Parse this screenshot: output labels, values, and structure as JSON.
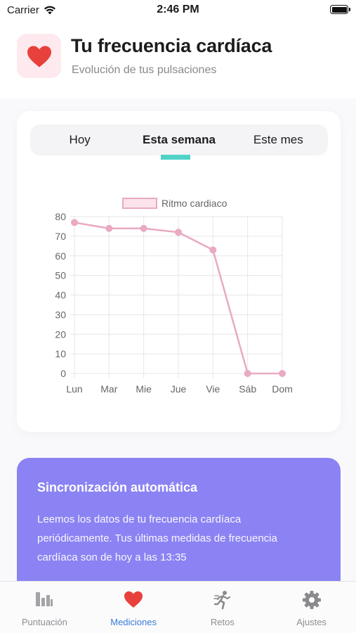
{
  "status_bar": {
    "carrier": "Carrier",
    "time": "2:46 PM"
  },
  "header": {
    "title": "Tu frecuencia cardíaca",
    "subtitle": "Evolución de tus pulsaciones",
    "icon": "heart-icon"
  },
  "segments": {
    "items": [
      "Hoy",
      "Esta semana",
      "Este mes"
    ],
    "selected": "Esta semana"
  },
  "chart_data": {
    "type": "line",
    "categories": [
      "Lun",
      "Mar",
      "Mie",
      "Jue",
      "Vie",
      "Sáb",
      "Dom"
    ],
    "series": [
      {
        "name": "Ritmo cardiaco",
        "values": [
          77,
          74,
          74,
          72,
          63,
          0,
          0
        ],
        "color": "#e9a9c3",
        "fill": "#fbe3ec"
      }
    ],
    "ylim": [
      0,
      80
    ],
    "yticks": [
      0,
      10,
      20,
      30,
      40,
      50,
      60,
      70,
      80
    ],
    "grid": true,
    "legend": "top"
  },
  "sync": {
    "title": "Sincronización automática",
    "text": "Leemos los datos de tu frecuencia cardíaca periódicamente. Tus últimas medidas de frecuencia cardíaca son de hoy a las 13:35"
  },
  "tabbar": {
    "items": [
      {
        "label": "Puntuación",
        "icon": "bar-chart-icon"
      },
      {
        "label": "Mediciones",
        "icon": "heart-icon"
      },
      {
        "label": "Retos",
        "icon": "runner-icon"
      },
      {
        "label": "Ajustes",
        "icon": "gear-icon"
      }
    ],
    "active": "Mediciones"
  },
  "colors": {
    "accent": "#3a7bd5",
    "heart": "#e8403b",
    "indicator": "#4fd2c8",
    "sync_card": "#8b83f3",
    "inactive": "#8e8e93"
  }
}
